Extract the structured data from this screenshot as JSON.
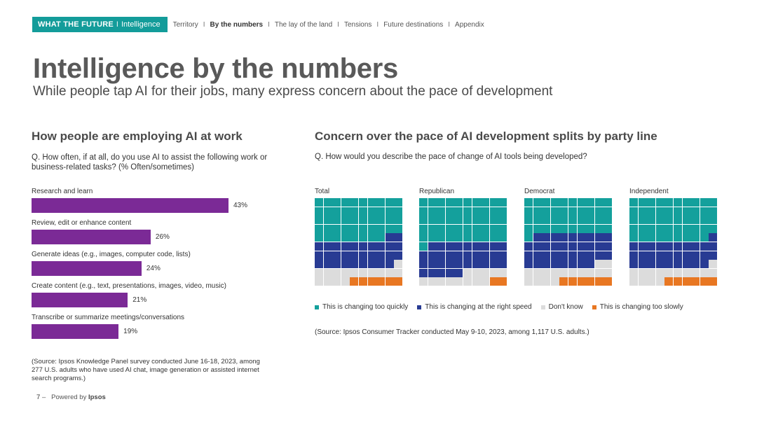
{
  "nav": {
    "brand": "WHAT THE FUTURE",
    "section": "Intelligence",
    "separator": "I",
    "links": [
      "Territory",
      "By the numbers",
      "The lay of the land",
      "Tensions",
      "Future destinations",
      "Appendix"
    ],
    "active_link": "By the numbers"
  },
  "title": "Intelligence by the numbers",
  "subtitle": "While people tap AI for their jobs, many express concern about the pace of development",
  "left": {
    "heading": "How people are employing AI at work",
    "question": "Q. How often, if at all, do you use AI to assist the following work or business-related tasks? (% Often/sometimes)",
    "source": "(Source: Ipsos Knowledge Panel survey conducted June 16-18, 2023, among 277 U.S. adults who have used AI chat, image generation or assisted internet search programs.)"
  },
  "right": {
    "heading": "Concern over the pace of AI development splits by party line",
    "question": "Q. How would you describe the pace of change of AI tools being developed?",
    "source": "(Source: Ipsos Consumer Tracker conducted May 9-10, 2023, among 1,117 U.S. adults.)"
  },
  "footer": {
    "page": "7",
    "dash": "–",
    "powered_by": "Powered by",
    "brand": "Ipsos"
  },
  "chart_data": [
    {
      "type": "bar",
      "orientation": "horizontal",
      "categories": [
        "Research and learn",
        "Review, edit or enhance content",
        "Generate ideas (e.g., images, computer code, lists)",
        "Create content (e.g., text, presentations, images, video, music)",
        "Transcribe or summarize meetings/conversations"
      ],
      "values": [
        43,
        26,
        24,
        21,
        19
      ],
      "value_labels": [
        "43%",
        "26%",
        "24%",
        "21%",
        "19%"
      ],
      "color": "#7b2a96",
      "xlim": [
        0,
        50
      ]
    },
    {
      "type": "waffle",
      "units_per_grid": 100,
      "grid_columns": 10,
      "categories": [
        "This is changing too quickly",
        "This is changing at the right speed",
        "Don't know",
        "This is changing too slowly"
      ],
      "colors": [
        "#14a09c",
        "#283b93",
        "#dcdcdc",
        "#e87722"
      ],
      "groups": [
        {
          "name": "Total",
          "values": [
            48,
            31,
            15,
            6
          ]
        },
        {
          "name": "Republican",
          "values": [
            51,
            34,
            13,
            2
          ]
        },
        {
          "name": "Democrat",
          "values": [
            41,
            37,
            16,
            6
          ]
        },
        {
          "name": "Independent",
          "values": [
            49,
            30,
            15,
            6
          ]
        }
      ],
      "legend_position": "bottom"
    }
  ]
}
